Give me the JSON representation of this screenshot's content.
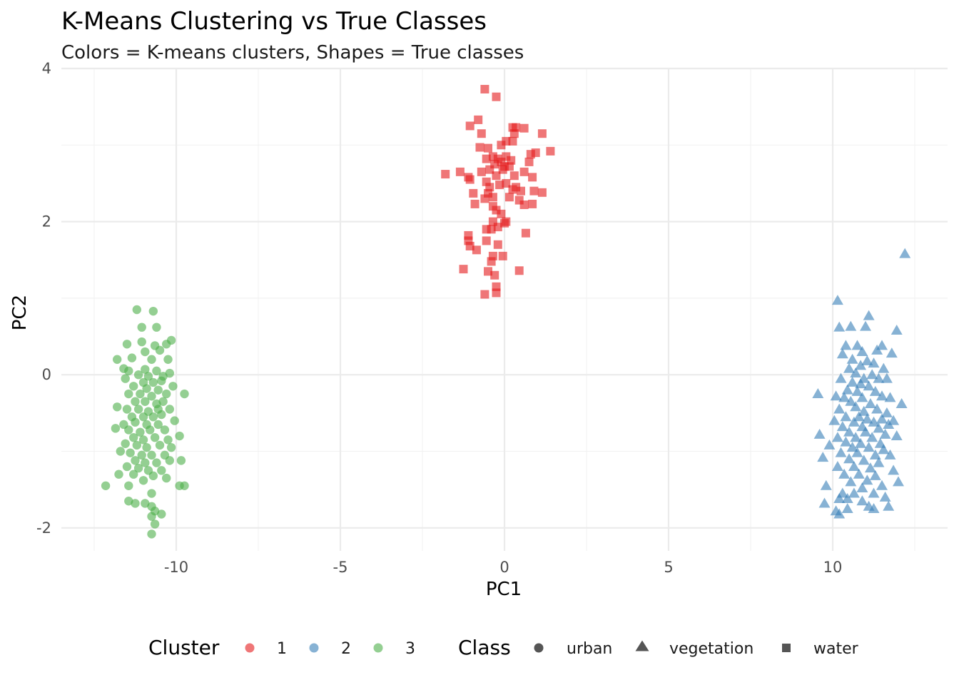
{
  "chart_data": {
    "type": "scatter",
    "title": "K-Means Clustering vs True Classes",
    "subtitle": "Colors = K-means clusters, Shapes = True classes",
    "xlabel": "PC1",
    "ylabel": "PC2",
    "xlim": [
      -13.5,
      13.5
    ],
    "ylim": [
      -2.3,
      4.0
    ],
    "x_ticks": [
      -10,
      -5,
      0,
      5,
      10
    ],
    "y_ticks": [
      -2,
      0,
      2,
      4
    ],
    "grid": true,
    "legend_position": "bottom",
    "legend": {
      "cluster_title": "Cluster",
      "clusters": [
        {
          "label": "1",
          "color": "#E41A1C"
        },
        {
          "label": "2",
          "color": "#377EB8"
        },
        {
          "label": "3",
          "color": "#4DAF4A"
        }
      ],
      "class_title": "Class",
      "classes": [
        {
          "label": "urban",
          "shape": "circle"
        },
        {
          "label": "vegetation",
          "shape": "triangle"
        },
        {
          "label": "water",
          "shape": "square"
        }
      ]
    },
    "series": [
      {
        "name": "water",
        "cluster": "1",
        "color": "#E41A1C",
        "shape": "square",
        "points": [
          [
            -0.6,
            3.73
          ],
          [
            -0.25,
            3.63
          ],
          [
            -1.05,
            3.25
          ],
          [
            -0.8,
            3.33
          ],
          [
            -0.7,
            3.15
          ],
          [
            0.35,
            3.23
          ],
          [
            0.25,
            3.23
          ],
          [
            0.6,
            3.22
          ],
          [
            1.15,
            3.15
          ],
          [
            0.3,
            3.15
          ],
          [
            0.05,
            3.05
          ],
          [
            -0.1,
            3.0
          ],
          [
            0.25,
            3.05
          ],
          [
            -0.5,
            2.96
          ],
          [
            -0.75,
            2.97
          ],
          [
            1.4,
            2.92
          ],
          [
            0.95,
            2.9
          ],
          [
            0.8,
            2.88
          ],
          [
            -0.55,
            2.82
          ],
          [
            -0.35,
            2.85
          ],
          [
            -0.2,
            2.82
          ],
          [
            0.05,
            2.85
          ],
          [
            0.2,
            2.8
          ],
          [
            -0.1,
            2.78
          ],
          [
            0.15,
            2.72
          ],
          [
            0.75,
            2.78
          ],
          [
            -0.3,
            2.75
          ],
          [
            0.0,
            2.72
          ],
          [
            -0.05,
            2.68
          ],
          [
            -0.45,
            2.68
          ],
          [
            0.6,
            2.65
          ],
          [
            -1.8,
            2.62
          ],
          [
            -1.35,
            2.65
          ],
          [
            -1.1,
            2.58
          ],
          [
            -0.7,
            2.65
          ],
          [
            -0.25,
            2.6
          ],
          [
            0.3,
            2.6
          ],
          [
            0.85,
            2.58
          ],
          [
            -1.05,
            2.55
          ],
          [
            -0.55,
            2.52
          ],
          [
            0.05,
            2.5
          ],
          [
            -0.15,
            2.48
          ],
          [
            -0.45,
            2.45
          ],
          [
            0.35,
            2.45
          ],
          [
            0.25,
            2.42
          ],
          [
            0.5,
            2.4
          ],
          [
            0.9,
            2.4
          ],
          [
            1.15,
            2.38
          ],
          [
            -0.95,
            2.37
          ],
          [
            -0.5,
            2.37
          ],
          [
            -0.35,
            2.32
          ],
          [
            0.15,
            2.32
          ],
          [
            0.45,
            2.28
          ],
          [
            -0.6,
            2.3
          ],
          [
            0.6,
            2.22
          ],
          [
            0.85,
            2.23
          ],
          [
            -0.9,
            2.23
          ],
          [
            -0.35,
            2.2
          ],
          [
            -0.25,
            2.15
          ],
          [
            -0.1,
            2.1
          ],
          [
            -0.35,
            2.0
          ],
          [
            0.05,
            2.0
          ],
          [
            0.0,
            1.98
          ],
          [
            -0.55,
            1.9
          ],
          [
            -0.4,
            1.9
          ],
          [
            -0.2,
            1.93
          ],
          [
            0.65,
            1.85
          ],
          [
            -1.1,
            1.82
          ],
          [
            -1.1,
            1.75
          ],
          [
            -0.55,
            1.75
          ],
          [
            -0.2,
            1.7
          ],
          [
            -1.05,
            1.68
          ],
          [
            -0.85,
            1.63
          ],
          [
            -0.35,
            1.55
          ],
          [
            -0.05,
            1.55
          ],
          [
            -0.4,
            1.48
          ],
          [
            -1.25,
            1.38
          ],
          [
            -0.5,
            1.35
          ],
          [
            -0.3,
            1.3
          ],
          [
            0.45,
            1.36
          ],
          [
            -0.25,
            1.15
          ],
          [
            -0.25,
            1.07
          ],
          [
            -0.6,
            1.05
          ]
        ]
      },
      {
        "name": "vegetation",
        "cluster": "2",
        "color": "#377EB8",
        "shape": "triangle",
        "points": [
          [
            12.2,
            1.58
          ],
          [
            10.15,
            0.97
          ],
          [
            11.1,
            0.77
          ],
          [
            10.2,
            0.62
          ],
          [
            10.55,
            0.63
          ],
          [
            11.0,
            0.63
          ],
          [
            11.95,
            0.58
          ],
          [
            10.4,
            0.38
          ],
          [
            10.75,
            0.38
          ],
          [
            11.5,
            0.38
          ],
          [
            10.3,
            0.27
          ],
          [
            10.9,
            0.3
          ],
          [
            11.35,
            0.32
          ],
          [
            11.8,
            0.28
          ],
          [
            10.6,
            0.2
          ],
          [
            11.05,
            0.18
          ],
          [
            10.85,
            0.12
          ],
          [
            11.25,
            0.15
          ],
          [
            10.5,
            0.08
          ],
          [
            11.55,
            0.08
          ],
          [
            10.7,
            0.02
          ],
          [
            11.2,
            0.0
          ],
          [
            10.25,
            -0.05
          ],
          [
            10.95,
            -0.05
          ],
          [
            11.4,
            -0.05
          ],
          [
            11.65,
            -0.05
          ],
          [
            10.6,
            -0.1
          ],
          [
            10.85,
            -0.12
          ],
          [
            11.1,
            -0.15
          ],
          [
            10.45,
            -0.2
          ],
          [
            10.75,
            -0.22
          ],
          [
            11.3,
            -0.22
          ],
          [
            9.55,
            -0.25
          ],
          [
            10.1,
            -0.28
          ],
          [
            10.35,
            -0.3
          ],
          [
            10.9,
            -0.3
          ],
          [
            11.5,
            -0.28
          ],
          [
            11.75,
            -0.3
          ],
          [
            10.55,
            -0.35
          ],
          [
            11.15,
            -0.38
          ],
          [
            12.1,
            -0.38
          ],
          [
            10.2,
            -0.45
          ],
          [
            10.7,
            -0.42
          ],
          [
            10.95,
            -0.48
          ],
          [
            11.35,
            -0.45
          ],
          [
            11.65,
            -0.5
          ],
          [
            10.4,
            -0.55
          ],
          [
            10.8,
            -0.55
          ],
          [
            11.05,
            -0.58
          ],
          [
            11.5,
            -0.58
          ],
          [
            10.05,
            -0.6
          ],
          [
            10.65,
            -0.62
          ],
          [
            11.25,
            -0.62
          ],
          [
            11.85,
            -0.6
          ],
          [
            10.3,
            -0.68
          ],
          [
            10.9,
            -0.68
          ],
          [
            11.4,
            -0.7
          ],
          [
            11.7,
            -0.65
          ],
          [
            10.5,
            -0.75
          ],
          [
            11.0,
            -0.75
          ],
          [
            11.6,
            -0.78
          ],
          [
            9.6,
            -0.78
          ],
          [
            10.15,
            -0.82
          ],
          [
            10.7,
            -0.82
          ],
          [
            11.2,
            -0.82
          ],
          [
            11.95,
            -0.8
          ],
          [
            10.4,
            -0.88
          ],
          [
            10.85,
            -0.9
          ],
          [
            11.45,
            -0.9
          ],
          [
            9.9,
            -0.92
          ],
          [
            10.6,
            -0.95
          ],
          [
            11.1,
            -0.95
          ],
          [
            11.55,
            -0.98
          ],
          [
            10.25,
            -1.02
          ],
          [
            10.75,
            -1.02
          ],
          [
            11.3,
            -1.05
          ],
          [
            11.75,
            -1.05
          ],
          [
            10.5,
            -1.1
          ],
          [
            10.95,
            -1.12
          ],
          [
            11.4,
            -1.15
          ],
          [
            9.7,
            -1.08
          ],
          [
            10.15,
            -1.2
          ],
          [
            10.65,
            -1.2
          ],
          [
            11.15,
            -1.22
          ],
          [
            11.85,
            -1.25
          ],
          [
            10.35,
            -1.3
          ],
          [
            10.8,
            -1.3
          ],
          [
            11.3,
            -1.32
          ],
          [
            11.05,
            -1.38
          ],
          [
            10.55,
            -1.4
          ],
          [
            12.0,
            -1.4
          ],
          [
            9.8,
            -1.45
          ],
          [
            10.9,
            -1.48
          ],
          [
            11.5,
            -1.45
          ],
          [
            10.3,
            -1.55
          ],
          [
            10.65,
            -1.55
          ],
          [
            11.25,
            -1.55
          ],
          [
            10.2,
            -1.62
          ],
          [
            10.45,
            -1.62
          ],
          [
            10.9,
            -1.65
          ],
          [
            11.6,
            -1.6
          ],
          [
            9.75,
            -1.68
          ],
          [
            11.1,
            -1.72
          ],
          [
            11.7,
            -1.72
          ],
          [
            10.1,
            -1.78
          ],
          [
            10.45,
            -1.75
          ],
          [
            10.2,
            -1.82
          ],
          [
            11.25,
            -1.75
          ]
        ]
      },
      {
        "name": "urban",
        "cluster": "3",
        "color": "#4DAF4A",
        "shape": "circle",
        "points": [
          [
            -11.2,
            0.85
          ],
          [
            -10.7,
            0.83
          ],
          [
            -11.05,
            0.62
          ],
          [
            -10.6,
            0.62
          ],
          [
            -11.5,
            0.4
          ],
          [
            -11.05,
            0.43
          ],
          [
            -10.65,
            0.38
          ],
          [
            -10.3,
            0.4
          ],
          [
            -10.15,
            0.45
          ],
          [
            -10.95,
            0.3
          ],
          [
            -10.5,
            0.32
          ],
          [
            -11.35,
            0.22
          ],
          [
            -11.8,
            0.2
          ],
          [
            -10.75,
            0.2
          ],
          [
            -10.25,
            0.2
          ],
          [
            -11.6,
            0.08
          ],
          [
            -11.45,
            0.05
          ],
          [
            -10.95,
            0.07
          ],
          [
            -10.6,
            0.05
          ],
          [
            -11.15,
            0.0
          ],
          [
            -10.85,
            -0.02
          ],
          [
            -10.4,
            -0.02
          ],
          [
            -10.2,
            0.02
          ],
          [
            -11.55,
            -0.05
          ],
          [
            -11.0,
            -0.1
          ],
          [
            -10.7,
            -0.1
          ],
          [
            -10.45,
            -0.08
          ],
          [
            -11.3,
            -0.15
          ],
          [
            -10.9,
            -0.18
          ],
          [
            -10.55,
            -0.2
          ],
          [
            -10.1,
            -0.15
          ],
          [
            -11.45,
            -0.25
          ],
          [
            -11.1,
            -0.25
          ],
          [
            -10.75,
            -0.28
          ],
          [
            -10.3,
            -0.25
          ],
          [
            -9.75,
            -0.25
          ],
          [
            -11.25,
            -0.35
          ],
          [
            -10.95,
            -0.35
          ],
          [
            -10.6,
            -0.38
          ],
          [
            -10.4,
            -0.35
          ],
          [
            -11.8,
            -0.42
          ],
          [
            -11.5,
            -0.45
          ],
          [
            -11.15,
            -0.45
          ],
          [
            -10.85,
            -0.48
          ],
          [
            -10.55,
            -0.45
          ],
          [
            -10.2,
            -0.45
          ],
          [
            -11.35,
            -0.55
          ],
          [
            -11.0,
            -0.55
          ],
          [
            -10.7,
            -0.55
          ],
          [
            -10.45,
            -0.52
          ],
          [
            -11.6,
            -0.65
          ],
          [
            -11.25,
            -0.62
          ],
          [
            -10.9,
            -0.65
          ],
          [
            -10.55,
            -0.65
          ],
          [
            -10.05,
            -0.6
          ],
          [
            -11.45,
            -0.72
          ],
          [
            -11.1,
            -0.75
          ],
          [
            -10.8,
            -0.72
          ],
          [
            -10.35,
            -0.72
          ],
          [
            -11.85,
            -0.7
          ],
          [
            -11.3,
            -0.82
          ],
          [
            -11.0,
            -0.85
          ],
          [
            -10.65,
            -0.82
          ],
          [
            -10.25,
            -0.85
          ],
          [
            -9.9,
            -0.8
          ],
          [
            -11.55,
            -0.9
          ],
          [
            -11.2,
            -0.92
          ],
          [
            -10.9,
            -0.95
          ],
          [
            -10.5,
            -0.92
          ],
          [
            -10.15,
            -0.95
          ],
          [
            -11.7,
            -1.0
          ],
          [
            -11.4,
            -1.02
          ],
          [
            -11.05,
            -1.05
          ],
          [
            -10.75,
            -1.05
          ],
          [
            -10.35,
            -1.05
          ],
          [
            -11.25,
            -1.12
          ],
          [
            -10.95,
            -1.15
          ],
          [
            -10.6,
            -1.15
          ],
          [
            -10.2,
            -1.12
          ],
          [
            -9.85,
            -1.12
          ],
          [
            -11.5,
            -1.2
          ],
          [
            -11.15,
            -1.22
          ],
          [
            -10.85,
            -1.25
          ],
          [
            -10.45,
            -1.25
          ],
          [
            -11.3,
            -1.3
          ],
          [
            -10.7,
            -1.32
          ],
          [
            -11.75,
            -1.3
          ],
          [
            -10.3,
            -1.35
          ],
          [
            -11.0,
            -1.38
          ],
          [
            -9.9,
            -1.45
          ],
          [
            -9.75,
            -1.45
          ],
          [
            -11.45,
            -1.45
          ],
          [
            -12.15,
            -1.45
          ],
          [
            -10.75,
            -1.55
          ],
          [
            -11.45,
            -1.65
          ],
          [
            -11.25,
            -1.68
          ],
          [
            -10.95,
            -1.68
          ],
          [
            -10.75,
            -1.72
          ],
          [
            -10.65,
            -1.78
          ],
          [
            -10.75,
            -1.85
          ],
          [
            -10.45,
            -1.82
          ],
          [
            -10.65,
            -1.95
          ],
          [
            -10.75,
            -2.08
          ]
        ]
      }
    ]
  }
}
